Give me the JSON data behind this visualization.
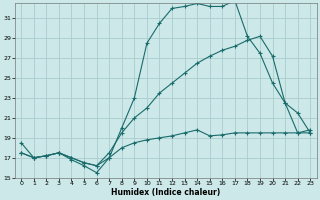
{
  "xlabel": "Humidex (Indice chaleur)",
  "bg_color": "#cce8e8",
  "grid_color": "#aacccc",
  "line_color": "#1a6b6b",
  "xlim": [
    -0.5,
    23.5
  ],
  "ylim": [
    15,
    32.5
  ],
  "yticks": [
    15,
    17,
    19,
    21,
    23,
    25,
    27,
    29,
    31
  ],
  "xticks": [
    0,
    1,
    2,
    3,
    4,
    5,
    6,
    7,
    8,
    9,
    10,
    11,
    12,
    13,
    14,
    15,
    16,
    17,
    18,
    19,
    20,
    21,
    22,
    23
  ],
  "line1_x": [
    0,
    1,
    2,
    3,
    4,
    5,
    6,
    7,
    8,
    9,
    10,
    11,
    12,
    13,
    14,
    15,
    16,
    17,
    18,
    19,
    20,
    21,
    22,
    23
  ],
  "line1_y": [
    18.5,
    17.0,
    17.2,
    17.5,
    16.8,
    16.2,
    15.5,
    17.0,
    20.0,
    23.0,
    28.5,
    30.5,
    32.0,
    32.2,
    32.5,
    32.2,
    32.2,
    32.8,
    29.2,
    27.5,
    24.5,
    22.5,
    19.5,
    19.5
  ],
  "line2_x": [
    0,
    1,
    2,
    3,
    4,
    5,
    6,
    7,
    8,
    9,
    10,
    11,
    12,
    13,
    14,
    15,
    16,
    17,
    18,
    19,
    20,
    21,
    22,
    23
  ],
  "line2_y": [
    17.5,
    17.0,
    17.2,
    17.5,
    17.0,
    16.5,
    16.2,
    17.5,
    19.5,
    21.0,
    22.0,
    23.5,
    24.5,
    25.5,
    26.5,
    27.2,
    27.8,
    28.2,
    28.8,
    29.2,
    27.2,
    22.5,
    21.5,
    19.5
  ],
  "line3_x": [
    0,
    1,
    2,
    3,
    4,
    5,
    6,
    7,
    8,
    9,
    10,
    11,
    12,
    13,
    14,
    15,
    16,
    17,
    18,
    19,
    20,
    21,
    22,
    23
  ],
  "line3_y": [
    17.5,
    17.0,
    17.2,
    17.5,
    17.0,
    16.5,
    16.2,
    17.0,
    18.0,
    18.5,
    18.8,
    19.0,
    19.2,
    19.5,
    19.8,
    19.2,
    19.3,
    19.5,
    19.5,
    19.5,
    19.5,
    19.5,
    19.5,
    19.8
  ]
}
